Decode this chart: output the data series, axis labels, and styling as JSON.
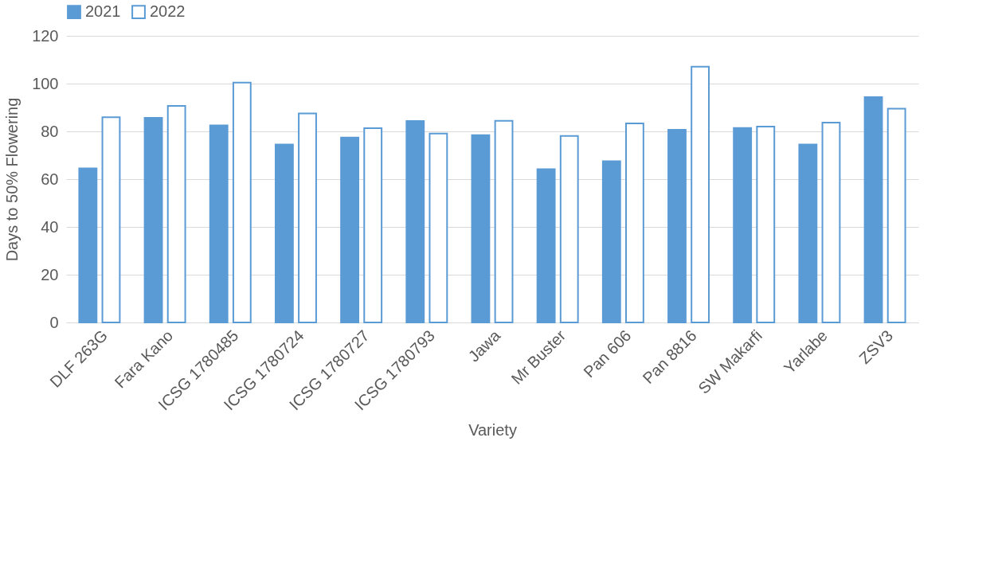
{
  "chart_data": {
    "type": "bar",
    "xlabel": "Variety",
    "ylabel": "Days to 50% Flowering",
    "categories": [
      "DLF 263G",
      "Fara Kano",
      "ICSG 1780485",
      "ICSG 1780724",
      "ICSG 1780727",
      "ICSG 1780793",
      "Jawa",
      "Mr Buster",
      "Pan 606",
      "Pan 8816",
      "SW Makarfi",
      "Yarlabe",
      "ZSV3"
    ],
    "series": [
      {
        "name": "2021",
        "color": "#5b9bd5",
        "values": [
          64.5,
          85.7,
          82.5,
          74.5,
          77.4,
          84.3,
          78.4,
          64.2,
          67.5,
          80.7,
          81.4,
          74.5,
          94.3
        ]
      },
      {
        "name": "2022",
        "color": "#5b9bd5",
        "values": [
          85.9,
          90.7,
          100.4,
          87.5,
          81.3,
          79.1,
          84.4,
          78.1,
          83.3,
          107.1,
          82.0,
          83.7,
          89.5
        ]
      }
    ],
    "ylim": [
      0,
      120
    ],
    "yticks": [
      0,
      20,
      40,
      60,
      80,
      100,
      120
    ],
    "grid": "y",
    "legend": "top"
  }
}
